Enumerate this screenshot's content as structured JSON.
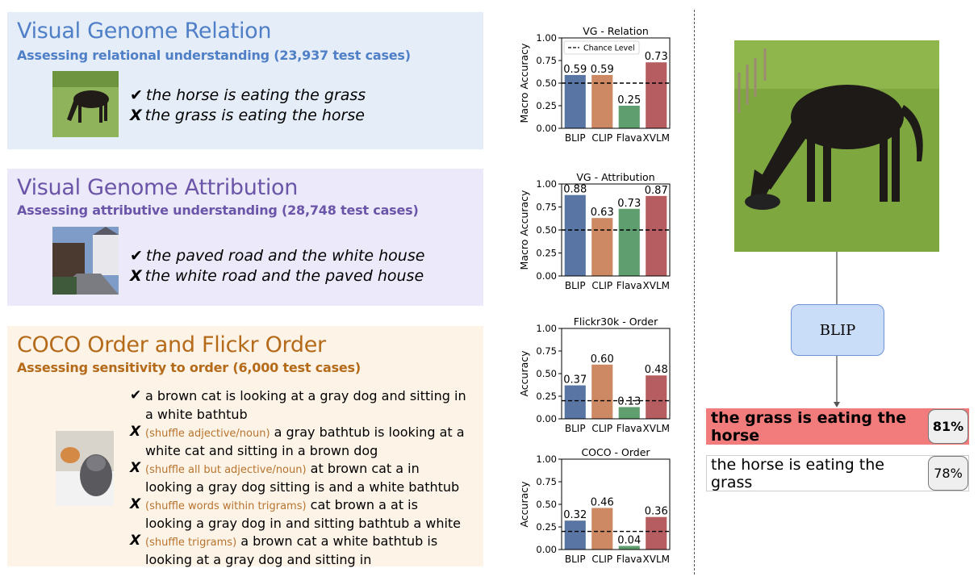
{
  "panels": {
    "relation": {
      "title": "Visual Genome Relation",
      "subtitle": "Assessing relational understanding (23,937 test cases)",
      "correct_mark": "✔",
      "correct": "the horse is eating the grass",
      "wrong_mark": "X",
      "wrong": "the grass is eating the horse"
    },
    "attribution": {
      "title": "Visual Genome Attribution",
      "subtitle": "Assessing attributive understanding (28,748 test cases)",
      "correct_mark": "✔",
      "correct": "the paved road and the white house",
      "wrong_mark": "X",
      "wrong": "the white road and the paved house"
    },
    "order": {
      "title": "COCO Order and Flickr Order",
      "subtitle": "Assessing sensitivity to order (6,000 test cases)",
      "items": [
        {
          "mark": "✔",
          "tag": "",
          "text": "a brown cat is looking at a gray dog and sitting in a white bathtub"
        },
        {
          "mark": "X",
          "tag": "(shuffle adjective/noun)",
          "text": "a gray bathtub is looking at a white cat and sitting in a brown dog"
        },
        {
          "mark": "X",
          "tag": "(shuffle all but adjective/noun)",
          "text": "at brown cat a in looking a gray dog sitting is and a white bathtub"
        },
        {
          "mark": "X",
          "tag": "(shuffle words within trigrams)",
          "text": "cat brown a at is looking a gray dog in and sitting bathtub a white"
        },
        {
          "mark": "X",
          "tag": "(shuffle trigrams)",
          "text": "a brown cat a white bathtub is looking at a gray dog and sitting in"
        }
      ]
    }
  },
  "colors": {
    "BLIP": "#5875a4",
    "CLIP": "#cc8963",
    "Flava": "#5f9e6e",
    "XVLM": "#b55d60",
    "relation_bg": "#e5edf9",
    "attribution_bg": "#ece9fb",
    "order_bg": "#fdf3e7",
    "relation_title": "#4f7fc7",
    "attribution_title": "#6a55a8",
    "order_title": "#b46a18",
    "wrong_result_bg": "#f27b7b"
  },
  "chart_data": [
    {
      "type": "bar",
      "title": "VG - Relation",
      "categories": [
        "BLIP",
        "CLIP",
        "Flava",
        "XVLM"
      ],
      "values": [
        0.59,
        0.59,
        0.25,
        0.73
      ],
      "value_labels": [
        "0.59",
        "0.59",
        "0.25",
        "0.73"
      ],
      "ylabel": "Macro Accuracy",
      "ylim": [
        0,
        1.0
      ],
      "yticks": [
        "0.00",
        "0.25",
        "0.50",
        "0.75",
        "1.00"
      ],
      "chance_level": 0.5,
      "legend": "Chance Level"
    },
    {
      "type": "bar",
      "title": "VG - Attribution",
      "categories": [
        "BLIP",
        "CLIP",
        "Flava",
        "XVLM"
      ],
      "values": [
        0.88,
        0.63,
        0.73,
        0.87
      ],
      "value_labels": [
        "0.88",
        "0.63",
        "0.73",
        "0.87"
      ],
      "ylabel": "Macro Accuracy",
      "ylim": [
        0,
        1.0
      ],
      "yticks": [
        "0.00",
        "0.25",
        "0.50",
        "0.75",
        "1.00"
      ],
      "chance_level": 0.5
    },
    {
      "type": "bar",
      "title": "Flickr30k - Order",
      "categories": [
        "BLIP",
        "CLIP",
        "Flava",
        "XVLM"
      ],
      "values": [
        0.37,
        0.6,
        0.13,
        0.48
      ],
      "value_labels": [
        "0.37",
        "0.60",
        "0.13",
        "0.48"
      ],
      "ylabel": "Accuracy",
      "ylim": [
        0,
        1.0
      ],
      "yticks": [
        "0.00",
        "0.25",
        "0.50",
        "0.75",
        "1.00"
      ],
      "chance_level": 0.2
    },
    {
      "type": "bar",
      "title": "COCO - Order",
      "categories": [
        "BLIP",
        "CLIP",
        "Flava",
        "XVLM"
      ],
      "values": [
        0.32,
        0.46,
        0.04,
        0.36
      ],
      "value_labels": [
        "0.32",
        "0.46",
        "0.04",
        "0.36"
      ],
      "ylabel": "Accuracy",
      "ylim": [
        0,
        1.0
      ],
      "yticks": [
        "0.00",
        "0.25",
        "0.50",
        "0.75",
        "1.00"
      ],
      "chance_level": 0.2
    }
  ],
  "pipeline": {
    "model": "BLIP",
    "results": [
      {
        "text": "the grass is eating the horse",
        "score": "81%"
      },
      {
        "text": "the horse is eating the grass",
        "score": "78%"
      }
    ]
  }
}
